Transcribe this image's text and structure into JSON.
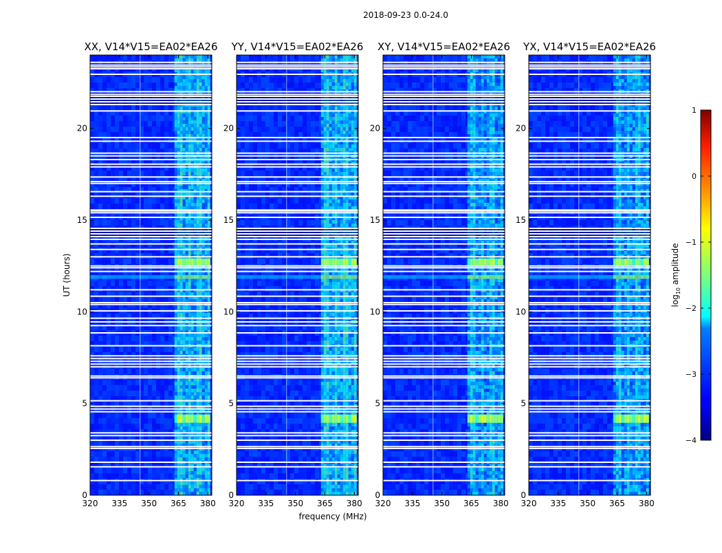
{
  "chart_data": {
    "type": "heatmap",
    "suptitle": "2018-09-23 0.0-24.0",
    "xlabel": "frequency (MHz)",
    "ylabel": "UT (hours)",
    "xlim": [
      320,
      382
    ],
    "ylim": [
      0,
      24
    ],
    "xticks": [
      320,
      335,
      350,
      365,
      380
    ],
    "yticks": [
      0,
      5,
      10,
      15,
      20
    ],
    "panels": [
      {
        "title": "XX, V14*V15=EA02*EA26",
        "pol": "XX"
      },
      {
        "title": "YY, V14*V15=EA02*EA26",
        "pol": "YY"
      },
      {
        "title": "XY, V14*V15=EA02*EA26",
        "pol": "XY"
      },
      {
        "title": "YX, V14*V15=EA02*EA26",
        "pol": "YX"
      }
    ],
    "colorbar": {
      "label": "log10 amplitude",
      "label_base": "log",
      "label_sub": "10",
      "label_rest": " amplitude",
      "min": -4,
      "max": 1,
      "ticks": [
        1,
        0,
        -1,
        -2,
        -3,
        -4
      ],
      "tick_labels": [
        "1",
        "0",
        "−1",
        "−2",
        "−3",
        "−4"
      ],
      "colormap": "jet"
    },
    "rfi_band_mhz": [
      363,
      380
    ],
    "rfi_subchannels_mhz": [
      365,
      370,
      375,
      380
    ],
    "flagged_ut_hours": [
      0.8,
      1.55,
      1.8,
      2.55,
      2.65,
      3.0,
      3.25,
      3.4,
      4.55,
      4.7,
      4.85,
      5.15,
      6.4,
      6.5,
      7.0,
      7.15,
      7.3,
      7.45,
      7.6,
      8.15,
      8.85,
      9.25,
      9.45,
      9.65,
      10.05,
      10.4,
      10.5,
      10.85,
      11.2,
      12.2,
      12.4,
      12.5,
      13.0,
      13.4,
      13.7,
      13.95,
      14.1,
      14.25,
      14.4,
      14.55,
      15.15,
      15.4,
      15.5,
      15.55,
      16.3,
      16.55,
      17.0,
      17.1,
      17.35,
      17.9,
      18.05,
      18.3,
      18.5,
      18.65,
      19.3,
      19.5,
      20.95,
      21.3,
      21.45,
      21.6,
      21.75,
      21.85,
      22.0,
      22.95,
      23.25,
      23.35,
      23.45,
      23.6
    ],
    "burst_ut_hours": [
      [
        3.95,
        4.4
      ],
      [
        11.8,
        12.0
      ],
      [
        12.55,
        12.9
      ]
    ],
    "colors": {
      "flag": "#ffffff",
      "background_level": -3.15
    }
  }
}
